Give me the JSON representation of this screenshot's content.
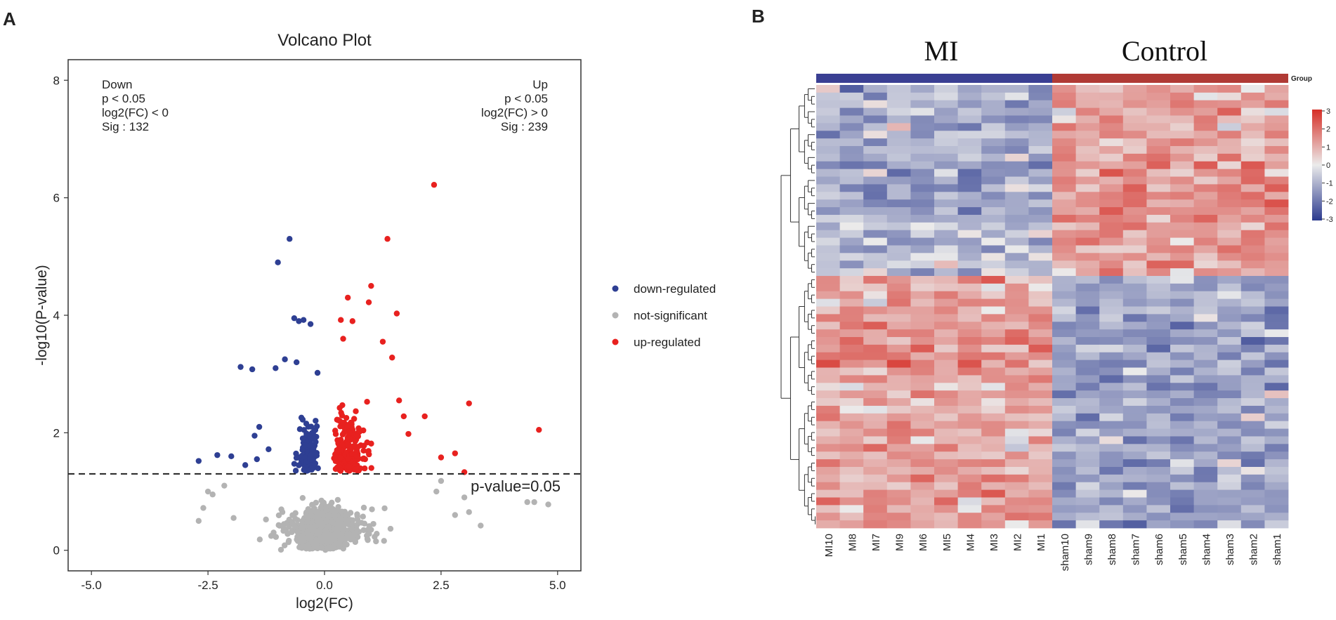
{
  "panels": {
    "a_label": "A",
    "b_label": "B"
  },
  "chart_data": [
    {
      "type": "scatter",
      "title": "Volcano Plot",
      "xlabel": "log2(FC)",
      "ylabel": "-log10(P-value)",
      "xlim": [
        -5.5,
        5.5
      ],
      "ylim": [
        -0.35,
        8.35
      ],
      "xticks": [
        -5.0,
        -2.5,
        0.0,
        2.5,
        5.0
      ],
      "xtick_labels": [
        "-5.0",
        "-2.5",
        "0.0",
        "2.5",
        "5.0"
      ],
      "yticks": [
        0,
        2,
        4,
        6,
        8
      ],
      "ytick_labels": [
        "0",
        "2",
        "4",
        "6",
        "8"
      ],
      "threshold": {
        "y": 1.30103,
        "label": "p-value=0.05"
      },
      "annotations": {
        "down": [
          "Down",
          "p < 0.05",
          "log2(FC) < 0",
          "Sig : 132"
        ],
        "up": [
          "Up",
          "p < 0.05",
          "log2(FC) > 0",
          "Sig : 239"
        ]
      },
      "legend": {
        "placement": "right",
        "items": [
          {
            "label": "down-regulated",
            "color": "#2e3f93"
          },
          {
            "label": "not-significant",
            "color": "#b3b3b3"
          },
          {
            "label": "up-regulated",
            "color": "#e8211f"
          }
        ]
      },
      "series": [
        {
          "name": "down-regulated",
          "color": "#2e3f93",
          "count": 132,
          "points": [
            [
              -2.7,
              1.52
            ],
            [
              -2.3,
              1.62
            ],
            [
              -1.8,
              3.12
            ],
            [
              -1.55,
              3.08
            ],
            [
              -1.45,
              1.55
            ],
            [
              -1.5,
              1.95
            ],
            [
              -1.0,
              4.9
            ],
            [
              -0.75,
              5.3
            ],
            [
              -0.65,
              3.95
            ],
            [
              -0.55,
              3.9
            ],
            [
              -0.45,
              3.92
            ],
            [
              -0.3,
              3.85
            ],
            [
              -0.85,
              3.25
            ],
            [
              -1.05,
              3.1
            ],
            [
              -0.6,
              3.2
            ],
            [
              -0.15,
              3.02
            ],
            [
              -1.4,
              2.1
            ],
            [
              -1.2,
              1.72
            ],
            [
              -2.0,
              1.6
            ],
            [
              -1.7,
              1.45
            ]
          ]
        },
        {
          "name": "up-regulated",
          "color": "#e8211f",
          "count": 239,
          "points": [
            [
              2.35,
              6.22
            ],
            [
              1.35,
              5.3
            ],
            [
              1.0,
              4.5
            ],
            [
              0.5,
              4.3
            ],
            [
              0.95,
              4.22
            ],
            [
              1.55,
              4.03
            ],
            [
              2.15,
              2.28
            ],
            [
              2.5,
              1.58
            ],
            [
              2.8,
              1.65
            ],
            [
              3.1,
              2.5
            ],
            [
              4.6,
              2.05
            ],
            [
              3.0,
              1.33
            ],
            [
              1.8,
              1.98
            ],
            [
              1.7,
              2.28
            ],
            [
              1.6,
              2.55
            ],
            [
              1.45,
              3.28
            ],
            [
              1.25,
              3.55
            ],
            [
              0.35,
              3.92
            ],
            [
              0.4,
              3.6
            ],
            [
              0.6,
              3.9
            ]
          ]
        },
        {
          "name": "not-significant",
          "color": "#b3b3b3",
          "count": 1400,
          "points": [
            [
              -2.7,
              0.5
            ],
            [
              -2.6,
              0.72
            ],
            [
              -2.5,
              1.0
            ],
            [
              -2.15,
              1.1
            ],
            [
              -2.4,
              0.95
            ],
            [
              -1.95,
              0.55
            ],
            [
              2.4,
              1.0
            ],
            [
              2.5,
              1.18
            ],
            [
              3.0,
              0.9
            ],
            [
              3.35,
              0.42
            ],
            [
              4.35,
              0.82
            ],
            [
              4.5,
              0.82
            ],
            [
              4.8,
              0.78
            ],
            [
              2.8,
              0.6
            ],
            [
              3.1,
              0.65
            ]
          ]
        }
      ]
    },
    {
      "type": "heatmap",
      "group_titles": [
        "MI",
        "Control"
      ],
      "group_legend_label": "Group",
      "group_colors": [
        "#3a3f93",
        "#b03a35"
      ],
      "columns": [
        "MI10",
        "MI8",
        "MI7",
        "MI9",
        "MI6",
        "MI5",
        "MI4",
        "MI3",
        "MI2",
        "MI1",
        "sham10",
        "sham9",
        "sham8",
        "sham7",
        "sham6",
        "sham5",
        "sham4",
        "sham3",
        "sham2",
        "sham1"
      ],
      "row_count": 58,
      "colorbar": {
        "min": -3,
        "max": 3,
        "ticks": [
          "3",
          "2",
          "1",
          "0",
          "-1",
          "-2",
          "-3"
        ]
      },
      "colors": {
        "low": "#2b3a8e",
        "mid": "#ebebeb",
        "high": "#d62f27"
      }
    }
  ]
}
